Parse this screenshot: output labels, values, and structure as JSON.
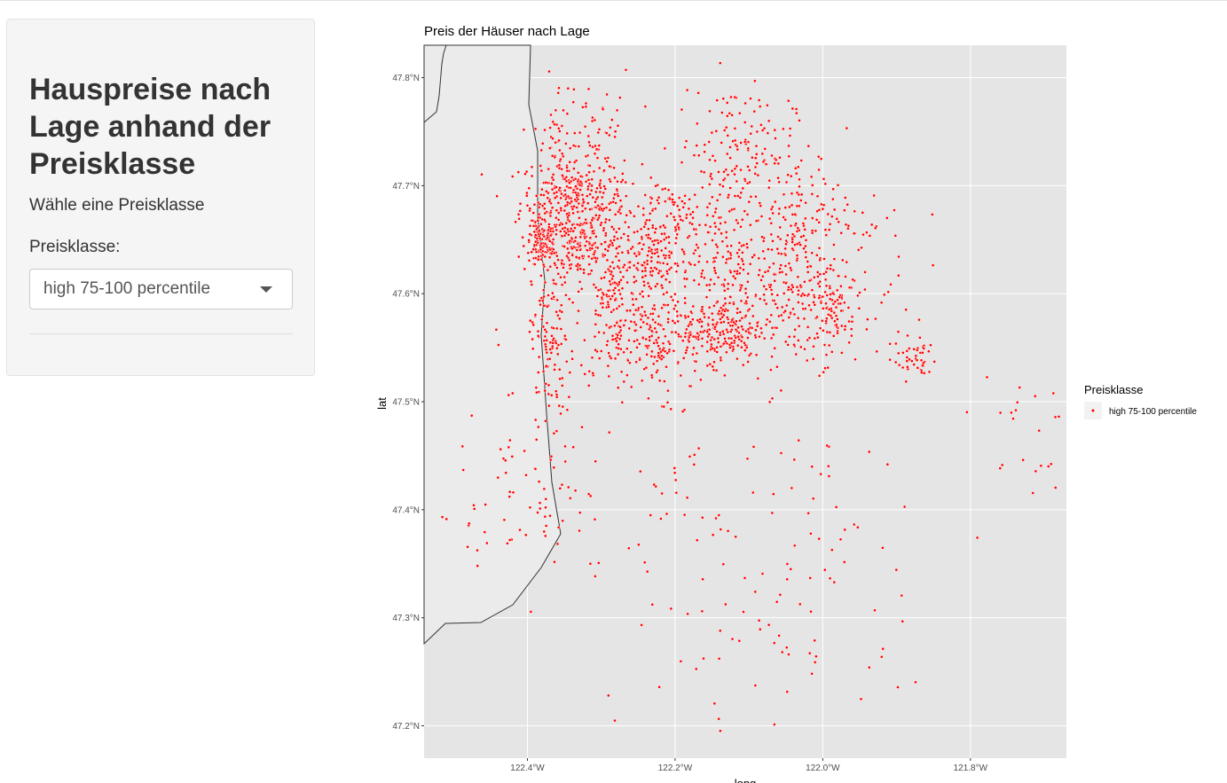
{
  "sidebar": {
    "title": "Hauspreise nach Lage anhand der Preisklasse",
    "subtitle": "Wähle eine Preisklasse",
    "select_label": "Preisklasse:",
    "select_value": "high 75-100 percentile"
  },
  "chart_data": {
    "type": "scatter",
    "title": "Preis der Häuser nach Lage",
    "xlabel": "long",
    "ylabel": "lat",
    "xlim": [
      -122.54,
      -121.67
    ],
    "ylim": [
      47.17,
      47.83
    ],
    "x_ticks": [
      -122.4,
      -122.2,
      -122.0,
      -121.8
    ],
    "x_tick_labels": [
      "122.4°W",
      "122.2°W",
      "122.0°W",
      "121.8°W"
    ],
    "y_ticks": [
      47.2,
      47.3,
      47.4,
      47.5,
      47.6,
      47.7,
      47.8
    ],
    "y_tick_labels": [
      "47.2°N",
      "47.3°N",
      "47.4°N",
      "47.5°N",
      "47.6°N",
      "47.7°N",
      "47.8°N"
    ],
    "grid": true,
    "legend": {
      "title": "Preisklasse",
      "position": "right",
      "entries": [
        "high 75-100 percentile"
      ]
    },
    "colors": {
      "panel": "#e5e5e5",
      "land": "#ebebeb",
      "points": "#ff0000",
      "grid": "#ffffff"
    },
    "series": [
      {
        "name": "high 75-100 percentile",
        "clusters": [
          {
            "lon": -122.34,
            "lat": 47.685,
            "sd_lon": 0.035,
            "sd_lat": 0.022,
            "n": 320
          },
          {
            "lon": -122.38,
            "lat": 47.645,
            "sd_lon": 0.012,
            "sd_lat": 0.012,
            "n": 120
          },
          {
            "lon": -122.33,
            "lat": 47.64,
            "sd_lon": 0.015,
            "sd_lat": 0.012,
            "n": 110
          },
          {
            "lon": -122.285,
            "lat": 47.6,
            "sd_lon": 0.022,
            "sd_lat": 0.045,
            "n": 230
          },
          {
            "lon": -122.37,
            "lat": 47.56,
            "sd_lon": 0.012,
            "sd_lat": 0.035,
            "n": 110
          },
          {
            "lon": -122.3,
            "lat": 47.735,
            "sd_lon": 0.02,
            "sd_lat": 0.035,
            "n": 60
          },
          {
            "lon": -122.36,
            "lat": 47.74,
            "sd_lon": 0.015,
            "sd_lat": 0.03,
            "n": 50
          },
          {
            "lon": -122.225,
            "lat": 47.63,
            "sd_lon": 0.022,
            "sd_lat": 0.02,
            "n": 150
          },
          {
            "lon": -122.215,
            "lat": 47.555,
            "sd_lon": 0.025,
            "sd_lat": 0.025,
            "n": 140
          },
          {
            "lon": -122.2,
            "lat": 47.67,
            "sd_lon": 0.03,
            "sd_lat": 0.02,
            "n": 90
          },
          {
            "lon": -122.12,
            "lat": 47.735,
            "sd_lon": 0.04,
            "sd_lat": 0.03,
            "n": 140
          },
          {
            "lon": -122.135,
            "lat": 47.565,
            "sd_lon": 0.025,
            "sd_lat": 0.015,
            "n": 190
          },
          {
            "lon": -122.13,
            "lat": 47.625,
            "sd_lon": 0.03,
            "sd_lat": 0.03,
            "n": 130
          },
          {
            "lon": -122.035,
            "lat": 47.605,
            "sd_lon": 0.035,
            "sd_lat": 0.035,
            "n": 210
          },
          {
            "lon": -122.04,
            "lat": 47.675,
            "sd_lon": 0.04,
            "sd_lat": 0.03,
            "n": 130
          },
          {
            "lon": -121.99,
            "lat": 47.585,
            "sd_lon": 0.015,
            "sd_lat": 0.018,
            "n": 60
          },
          {
            "lon": -121.875,
            "lat": 47.54,
            "sd_lon": 0.015,
            "sd_lat": 0.01,
            "n": 45
          },
          {
            "lon": -121.74,
            "lat": 47.47,
            "sd_lon": 0.035,
            "sd_lat": 0.03,
            "n": 22
          },
          {
            "lon": -122.38,
            "lat": 47.44,
            "sd_lon": 0.03,
            "sd_lat": 0.06,
            "n": 70
          },
          {
            "lon": -122.47,
            "lat": 47.4,
            "sd_lon": 0.03,
            "sd_lat": 0.04,
            "n": 20
          },
          {
            "lon": -122.1,
            "lat": 47.4,
            "sd_lon": 0.12,
            "sd_lat": 0.1,
            "n": 130
          },
          {
            "lon": -122.02,
            "lat": 47.3,
            "sd_lon": 0.06,
            "sd_lat": 0.05,
            "n": 25
          },
          {
            "lon": -121.95,
            "lat": 47.63,
            "sd_lon": 0.04,
            "sd_lat": 0.05,
            "n": 40
          }
        ]
      }
    ]
  }
}
